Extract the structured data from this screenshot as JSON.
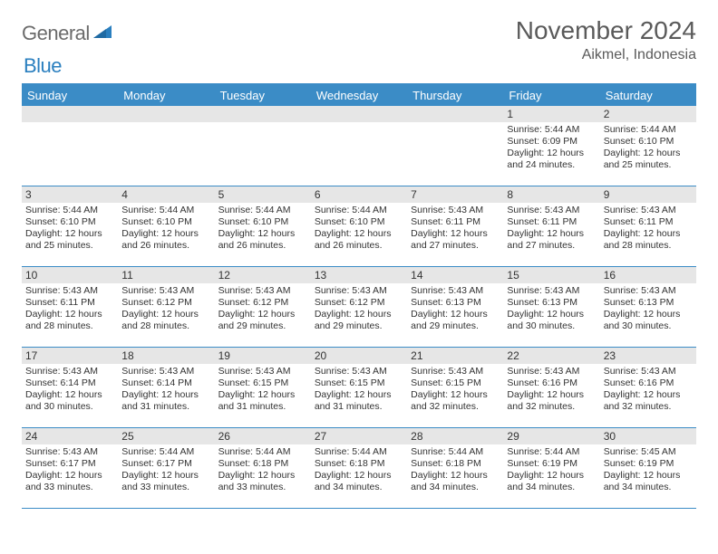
{
  "logo": {
    "part1": "General",
    "part2": "Blue"
  },
  "title": "November 2024",
  "location": "Aikmel, Indonesia",
  "colors": {
    "header_bg": "#3b8cc6",
    "header_text": "#ffffff",
    "daynum_bg": "#e6e6e6",
    "body_text": "#333333",
    "title_text": "#5a5a5a",
    "logo_gray": "#6b6b6b",
    "logo_blue": "#2a7fbf",
    "rule": "#3b8cc6"
  },
  "days_of_week": [
    "Sunday",
    "Monday",
    "Tuesday",
    "Wednesday",
    "Thursday",
    "Friday",
    "Saturday"
  ],
  "weeks": [
    [
      null,
      null,
      null,
      null,
      null,
      {
        "n": "1",
        "sunrise": "Sunrise: 5:44 AM",
        "sunset": "Sunset: 6:09 PM",
        "day1": "Daylight: 12 hours",
        "day2": "and 24 minutes."
      },
      {
        "n": "2",
        "sunrise": "Sunrise: 5:44 AM",
        "sunset": "Sunset: 6:10 PM",
        "day1": "Daylight: 12 hours",
        "day2": "and 25 minutes."
      }
    ],
    [
      {
        "n": "3",
        "sunrise": "Sunrise: 5:44 AM",
        "sunset": "Sunset: 6:10 PM",
        "day1": "Daylight: 12 hours",
        "day2": "and 25 minutes."
      },
      {
        "n": "4",
        "sunrise": "Sunrise: 5:44 AM",
        "sunset": "Sunset: 6:10 PM",
        "day1": "Daylight: 12 hours",
        "day2": "and 26 minutes."
      },
      {
        "n": "5",
        "sunrise": "Sunrise: 5:44 AM",
        "sunset": "Sunset: 6:10 PM",
        "day1": "Daylight: 12 hours",
        "day2": "and 26 minutes."
      },
      {
        "n": "6",
        "sunrise": "Sunrise: 5:44 AM",
        "sunset": "Sunset: 6:10 PM",
        "day1": "Daylight: 12 hours",
        "day2": "and 26 minutes."
      },
      {
        "n": "7",
        "sunrise": "Sunrise: 5:43 AM",
        "sunset": "Sunset: 6:11 PM",
        "day1": "Daylight: 12 hours",
        "day2": "and 27 minutes."
      },
      {
        "n": "8",
        "sunrise": "Sunrise: 5:43 AM",
        "sunset": "Sunset: 6:11 PM",
        "day1": "Daylight: 12 hours",
        "day2": "and 27 minutes."
      },
      {
        "n": "9",
        "sunrise": "Sunrise: 5:43 AM",
        "sunset": "Sunset: 6:11 PM",
        "day1": "Daylight: 12 hours",
        "day2": "and 28 minutes."
      }
    ],
    [
      {
        "n": "10",
        "sunrise": "Sunrise: 5:43 AM",
        "sunset": "Sunset: 6:11 PM",
        "day1": "Daylight: 12 hours",
        "day2": "and 28 minutes."
      },
      {
        "n": "11",
        "sunrise": "Sunrise: 5:43 AM",
        "sunset": "Sunset: 6:12 PM",
        "day1": "Daylight: 12 hours",
        "day2": "and 28 minutes."
      },
      {
        "n": "12",
        "sunrise": "Sunrise: 5:43 AM",
        "sunset": "Sunset: 6:12 PM",
        "day1": "Daylight: 12 hours",
        "day2": "and 29 minutes."
      },
      {
        "n": "13",
        "sunrise": "Sunrise: 5:43 AM",
        "sunset": "Sunset: 6:12 PM",
        "day1": "Daylight: 12 hours",
        "day2": "and 29 minutes."
      },
      {
        "n": "14",
        "sunrise": "Sunrise: 5:43 AM",
        "sunset": "Sunset: 6:13 PM",
        "day1": "Daylight: 12 hours",
        "day2": "and 29 minutes."
      },
      {
        "n": "15",
        "sunrise": "Sunrise: 5:43 AM",
        "sunset": "Sunset: 6:13 PM",
        "day1": "Daylight: 12 hours",
        "day2": "and 30 minutes."
      },
      {
        "n": "16",
        "sunrise": "Sunrise: 5:43 AM",
        "sunset": "Sunset: 6:13 PM",
        "day1": "Daylight: 12 hours",
        "day2": "and 30 minutes."
      }
    ],
    [
      {
        "n": "17",
        "sunrise": "Sunrise: 5:43 AM",
        "sunset": "Sunset: 6:14 PM",
        "day1": "Daylight: 12 hours",
        "day2": "and 30 minutes."
      },
      {
        "n": "18",
        "sunrise": "Sunrise: 5:43 AM",
        "sunset": "Sunset: 6:14 PM",
        "day1": "Daylight: 12 hours",
        "day2": "and 31 minutes."
      },
      {
        "n": "19",
        "sunrise": "Sunrise: 5:43 AM",
        "sunset": "Sunset: 6:15 PM",
        "day1": "Daylight: 12 hours",
        "day2": "and 31 minutes."
      },
      {
        "n": "20",
        "sunrise": "Sunrise: 5:43 AM",
        "sunset": "Sunset: 6:15 PM",
        "day1": "Daylight: 12 hours",
        "day2": "and 31 minutes."
      },
      {
        "n": "21",
        "sunrise": "Sunrise: 5:43 AM",
        "sunset": "Sunset: 6:15 PM",
        "day1": "Daylight: 12 hours",
        "day2": "and 32 minutes."
      },
      {
        "n": "22",
        "sunrise": "Sunrise: 5:43 AM",
        "sunset": "Sunset: 6:16 PM",
        "day1": "Daylight: 12 hours",
        "day2": "and 32 minutes."
      },
      {
        "n": "23",
        "sunrise": "Sunrise: 5:43 AM",
        "sunset": "Sunset: 6:16 PM",
        "day1": "Daylight: 12 hours",
        "day2": "and 32 minutes."
      }
    ],
    [
      {
        "n": "24",
        "sunrise": "Sunrise: 5:43 AM",
        "sunset": "Sunset: 6:17 PM",
        "day1": "Daylight: 12 hours",
        "day2": "and 33 minutes."
      },
      {
        "n": "25",
        "sunrise": "Sunrise: 5:44 AM",
        "sunset": "Sunset: 6:17 PM",
        "day1": "Daylight: 12 hours",
        "day2": "and 33 minutes."
      },
      {
        "n": "26",
        "sunrise": "Sunrise: 5:44 AM",
        "sunset": "Sunset: 6:18 PM",
        "day1": "Daylight: 12 hours",
        "day2": "and 33 minutes."
      },
      {
        "n": "27",
        "sunrise": "Sunrise: 5:44 AM",
        "sunset": "Sunset: 6:18 PM",
        "day1": "Daylight: 12 hours",
        "day2": "and 34 minutes."
      },
      {
        "n": "28",
        "sunrise": "Sunrise: 5:44 AM",
        "sunset": "Sunset: 6:18 PM",
        "day1": "Daylight: 12 hours",
        "day2": "and 34 minutes."
      },
      {
        "n": "29",
        "sunrise": "Sunrise: 5:44 AM",
        "sunset": "Sunset: 6:19 PM",
        "day1": "Daylight: 12 hours",
        "day2": "and 34 minutes."
      },
      {
        "n": "30",
        "sunrise": "Sunrise: 5:45 AM",
        "sunset": "Sunset: 6:19 PM",
        "day1": "Daylight: 12 hours",
        "day2": "and 34 minutes."
      }
    ]
  ]
}
